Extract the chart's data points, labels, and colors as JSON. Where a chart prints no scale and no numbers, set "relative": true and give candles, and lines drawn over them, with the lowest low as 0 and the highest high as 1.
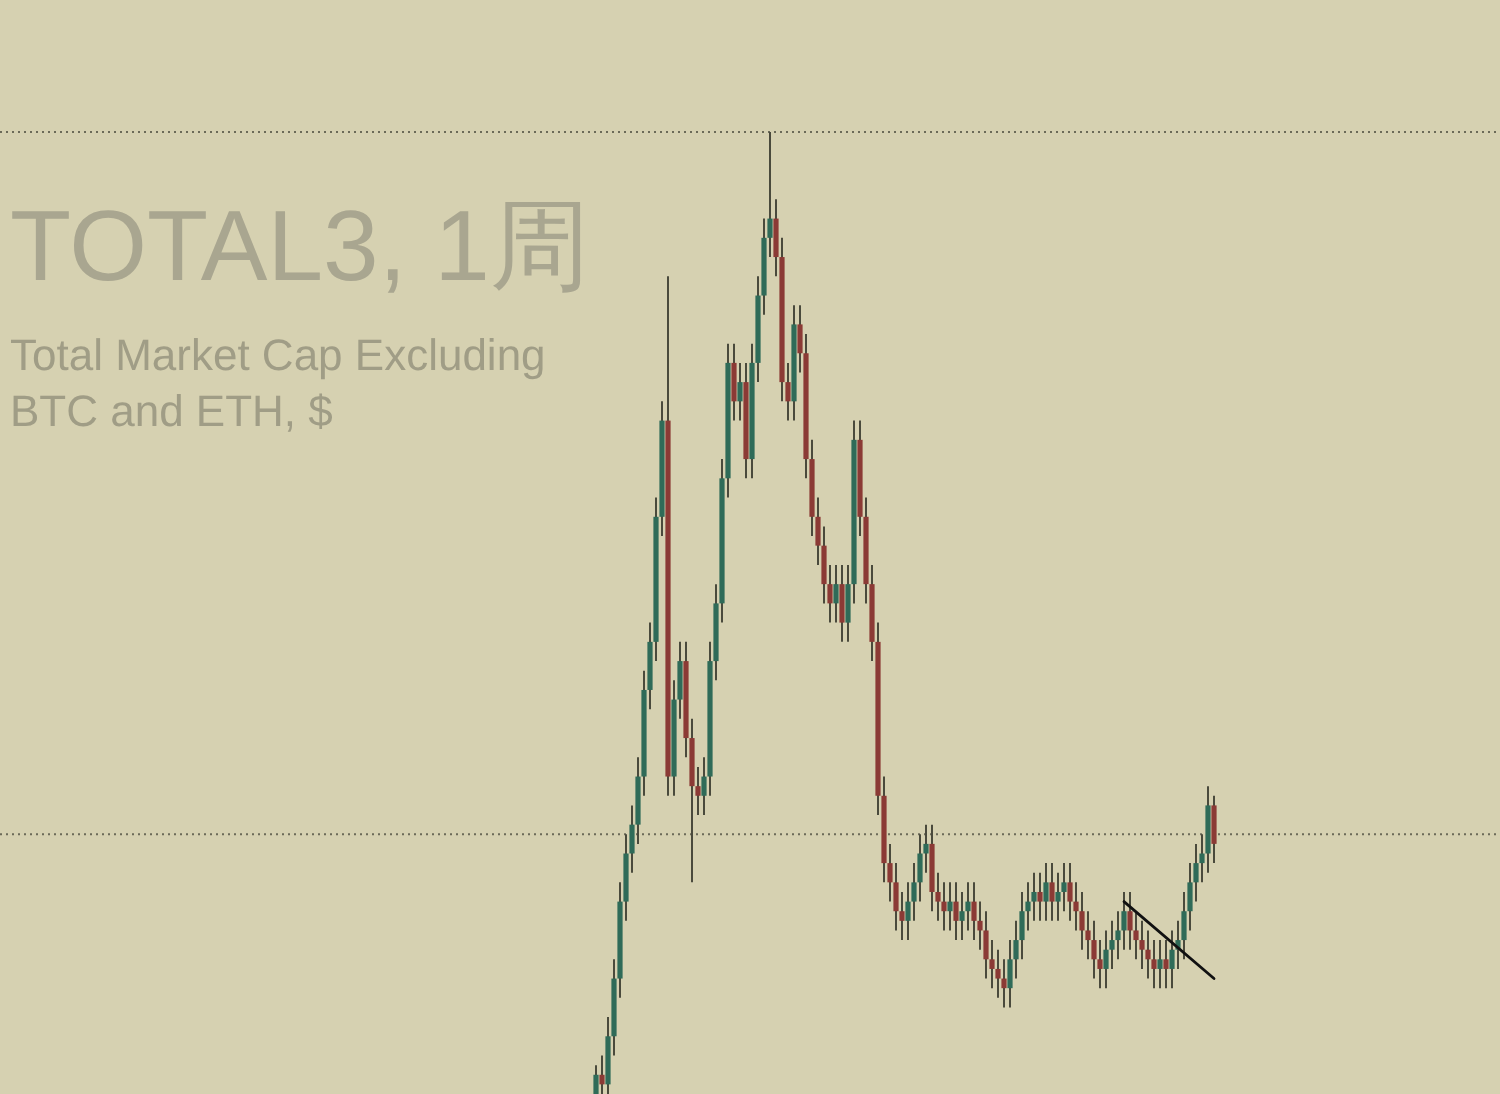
{
  "chart_data": {
    "type": "candlestick",
    "title": "TOTAL3, 1周",
    "subtitle": "Total Market Cap Excluding BTC and ETH, $",
    "relative": true,
    "colors": [
      "#2f6b58",
      "#8b3a35",
      "#2f6b58",
      "#2f6b58",
      "#2f6b58",
      "#2f6b58",
      "#2f6b58",
      "#2f6b58",
      "#2f6b58",
      "#2f6b58",
      "#2f6b58",
      "#2f6b58",
      "#8b3a35",
      "#2f6b58",
      "#2f6b58",
      "#8b3a35",
      "#8b3a35",
      "#8b3a35",
      "#2f6b58",
      "#2f6b58",
      "#2f6b58",
      "#2f6b58",
      "#2f6b58",
      "#8b3a35",
      "#2f6b58",
      "#8b3a35",
      "#2f6b58",
      "#2f6b58",
      "#2f6b58",
      "#2f6b58",
      "#8b3a35",
      "#8b3a35",
      "#8b3a35",
      "#2f6b58",
      "#8b3a35",
      "#8b3a35",
      "#8b3a35",
      "#8b3a35",
      "#8b3a35",
      "#8b3a35",
      "#2f6b58",
      "#8b3a35",
      "#2f6b58",
      "#2f6b58",
      "#8b3a35",
      "#8b3a35",
      "#8b3a35",
      "#8b3a35",
      "#8b3a35",
      "#8b3a35",
      "#8b3a35",
      "#8b3a35",
      "#2f6b58",
      "#2f6b58",
      "#2f6b58",
      "#2f6b58",
      "#8b3a35",
      "#8b3a35",
      "#8b3a35",
      "#2f6b58",
      "#8b3a35",
      "#2f6b58",
      "#2f6b58",
      "#8b3a35",
      "#8b3a35",
      "#8b3a35",
      "#8b3a35",
      "#8b3a35",
      "#8b3a35",
      "#2f6b58",
      "#2f6b58",
      "#2f6b58",
      "#2f6b58",
      "#2f6b58",
      "#8b3a35",
      "#2f6b58",
      "#8b3a35",
      "#2f6b58",
      "#2f6b58",
      "#8b3a35",
      "#8b3a35",
      "#8b3a35",
      "#8b3a35",
      "#8b3a35",
      "#8b3a35",
      "#2f6b58",
      "#2f6b58",
      "#2f6b58",
      "#2f6b58",
      "#8b3a35",
      "#8b3a35",
      "#8b3a35",
      "#8b3a35",
      "#8b3a35",
      "#2f6b58",
      "#8b3a35",
      "#2f6b58",
      "#2f6b58",
      "#2f6b58",
      "#2f6b58",
      "#2f6b58",
      "#2f6b58",
      "#2f6b58",
      "#8b3a35"
    ],
    "categories": [
      null,
      null,
      null,
      null,
      null,
      null,
      null,
      null,
      null,
      null,
      null,
      null,
      null,
      null,
      null,
      null,
      null,
      null,
      null,
      null,
      null,
      null,
      null,
      null,
      null,
      null,
      null,
      null,
      null,
      null,
      null,
      null,
      null,
      null,
      null,
      null,
      null,
      null,
      null,
      null,
      null,
      null,
      null,
      null,
      null,
      null,
      null,
      null,
      null,
      null,
      null,
      null,
      null,
      null,
      null,
      null,
      null,
      null,
      null,
      null,
      null,
      null,
      null,
      null,
      null,
      null,
      null,
      null,
      null,
      null,
      null,
      null,
      null,
      null,
      null,
      null,
      null,
      null,
      null,
      null,
      null,
      null,
      null,
      null,
      null,
      null,
      null,
      null,
      null,
      null,
      null,
      null,
      null,
      null,
      null,
      null,
      null,
      null,
      null,
      null,
      null,
      null,
      null,
      null
    ],
    "ohlc": [
      [
        0.0,
        0.03,
        0.0,
        0.02
      ],
      [
        0.02,
        0.04,
        0.0,
        0.01
      ],
      [
        0.01,
        0.08,
        0.0,
        0.06
      ],
      [
        0.06,
        0.14,
        0.04,
        0.12
      ],
      [
        0.12,
        0.22,
        0.1,
        0.2
      ],
      [
        0.2,
        0.27,
        0.18,
        0.25
      ],
      [
        0.25,
        0.3,
        0.23,
        0.28
      ],
      [
        0.28,
        0.35,
        0.26,
        0.33
      ],
      [
        0.33,
        0.44,
        0.31,
        0.42
      ],
      [
        0.42,
        0.49,
        0.4,
        0.47
      ],
      [
        0.47,
        0.62,
        0.45,
        0.6
      ],
      [
        0.6,
        0.72,
        0.58,
        0.7
      ],
      [
        0.7,
        0.85,
        0.31,
        0.33
      ],
      [
        0.33,
        0.43,
        0.31,
        0.41
      ],
      [
        0.41,
        0.47,
        0.39,
        0.45
      ],
      [
        0.45,
        0.47,
        0.35,
        0.37
      ],
      [
        0.37,
        0.39,
        0.22,
        0.32
      ],
      [
        0.32,
        0.34,
        0.29,
        0.31
      ],
      [
        0.31,
        0.35,
        0.29,
        0.33
      ],
      [
        0.33,
        0.47,
        0.31,
        0.45
      ],
      [
        0.45,
        0.53,
        0.43,
        0.51
      ],
      [
        0.51,
        0.66,
        0.49,
        0.64
      ],
      [
        0.64,
        0.78,
        0.62,
        0.76
      ],
      [
        0.76,
        0.78,
        0.7,
        0.72
      ],
      [
        0.72,
        0.76,
        0.7,
        0.74
      ],
      [
        0.74,
        0.76,
        0.64,
        0.66
      ],
      [
        0.66,
        0.78,
        0.64,
        0.76
      ],
      [
        0.76,
        0.85,
        0.74,
        0.83
      ],
      [
        0.83,
        0.91,
        0.81,
        0.89
      ],
      [
        0.89,
        1.0,
        0.87,
        0.91
      ],
      [
        0.91,
        0.93,
        0.85,
        0.87
      ],
      [
        0.87,
        0.89,
        0.72,
        0.74
      ],
      [
        0.74,
        0.76,
        0.7,
        0.72
      ],
      [
        0.72,
        0.82,
        0.7,
        0.8
      ],
      [
        0.8,
        0.82,
        0.75,
        0.77
      ],
      [
        0.77,
        0.79,
        0.64,
        0.66
      ],
      [
        0.66,
        0.68,
        0.58,
        0.6
      ],
      [
        0.6,
        0.62,
        0.55,
        0.57
      ],
      [
        0.57,
        0.59,
        0.51,
        0.53
      ],
      [
        0.53,
        0.55,
        0.49,
        0.51
      ],
      [
        0.51,
        0.55,
        0.49,
        0.53
      ],
      [
        0.53,
        0.55,
        0.47,
        0.49
      ],
      [
        0.49,
        0.55,
        0.47,
        0.53
      ],
      [
        0.53,
        0.7,
        0.51,
        0.68
      ],
      [
        0.68,
        0.7,
        0.58,
        0.6
      ],
      [
        0.6,
        0.62,
        0.51,
        0.53
      ],
      [
        0.53,
        0.55,
        0.45,
        0.47
      ],
      [
        0.47,
        0.49,
        0.29,
        0.31
      ],
      [
        0.31,
        0.33,
        0.22,
        0.24
      ],
      [
        0.24,
        0.26,
        0.2,
        0.22
      ],
      [
        0.22,
        0.24,
        0.17,
        0.19
      ],
      [
        0.19,
        0.21,
        0.16,
        0.18
      ],
      [
        0.18,
        0.22,
        0.16,
        0.2
      ],
      [
        0.2,
        0.24,
        0.18,
        0.22
      ],
      [
        0.22,
        0.27,
        0.2,
        0.25
      ],
      [
        0.25,
        0.28,
        0.23,
        0.26
      ],
      [
        0.26,
        0.28,
        0.19,
        0.21
      ],
      [
        0.21,
        0.23,
        0.18,
        0.2
      ],
      [
        0.2,
        0.22,
        0.17,
        0.19
      ],
      [
        0.19,
        0.22,
        0.17,
        0.2
      ],
      [
        0.2,
        0.22,
        0.16,
        0.18
      ],
      [
        0.18,
        0.21,
        0.16,
        0.19
      ],
      [
        0.19,
        0.22,
        0.17,
        0.2
      ],
      [
        0.2,
        0.22,
        0.16,
        0.18
      ],
      [
        0.18,
        0.2,
        0.15,
        0.17
      ],
      [
        0.17,
        0.19,
        0.12,
        0.14
      ],
      [
        0.14,
        0.16,
        0.11,
        0.13
      ],
      [
        0.13,
        0.15,
        0.1,
        0.12
      ],
      [
        0.12,
        0.14,
        0.09,
        0.11
      ],
      [
        0.11,
        0.16,
        0.09,
        0.14
      ],
      [
        0.14,
        0.18,
        0.12,
        0.16
      ],
      [
        0.16,
        0.21,
        0.14,
        0.19
      ],
      [
        0.19,
        0.22,
        0.17,
        0.2
      ],
      [
        0.2,
        0.23,
        0.18,
        0.21
      ],
      [
        0.21,
        0.23,
        0.18,
        0.2
      ],
      [
        0.2,
        0.24,
        0.18,
        0.22
      ],
      [
        0.22,
        0.24,
        0.18,
        0.2
      ],
      [
        0.2,
        0.23,
        0.18,
        0.21
      ],
      [
        0.21,
        0.24,
        0.19,
        0.22
      ],
      [
        0.22,
        0.24,
        0.18,
        0.2
      ],
      [
        0.2,
        0.22,
        0.17,
        0.19
      ],
      [
        0.19,
        0.21,
        0.15,
        0.17
      ],
      [
        0.17,
        0.19,
        0.14,
        0.16
      ],
      [
        0.16,
        0.18,
        0.12,
        0.14
      ],
      [
        0.14,
        0.16,
        0.11,
        0.13
      ],
      [
        0.13,
        0.17,
        0.11,
        0.15
      ],
      [
        0.15,
        0.18,
        0.13,
        0.16
      ],
      [
        0.16,
        0.19,
        0.14,
        0.17
      ],
      [
        0.17,
        0.21,
        0.15,
        0.19
      ],
      [
        0.19,
        0.21,
        0.15,
        0.17
      ],
      [
        0.17,
        0.19,
        0.14,
        0.16
      ],
      [
        0.16,
        0.18,
        0.13,
        0.15
      ],
      [
        0.15,
        0.17,
        0.12,
        0.14
      ],
      [
        0.14,
        0.16,
        0.11,
        0.13
      ],
      [
        0.13,
        0.16,
        0.11,
        0.14
      ],
      [
        0.14,
        0.16,
        0.11,
        0.13
      ],
      [
        0.13,
        0.17,
        0.11,
        0.15
      ],
      [
        0.15,
        0.18,
        0.13,
        0.16
      ],
      [
        0.16,
        0.21,
        0.14,
        0.19
      ],
      [
        0.19,
        0.24,
        0.17,
        0.22
      ],
      [
        0.22,
        0.26,
        0.2,
        0.24
      ],
      [
        0.24,
        0.27,
        0.22,
        0.25
      ],
      [
        0.25,
        0.32,
        0.23,
        0.3
      ],
      [
        0.3,
        0.31,
        0.24,
        0.26
      ]
    ],
    "series": [
      {
        "type": "line",
        "color": "#111111",
        "values": [
          null,
          null,
          null,
          null,
          null,
          null,
          null,
          null,
          null,
          null,
          null,
          null,
          null,
          null,
          null,
          null,
          null,
          null,
          null,
          null,
          null,
          null,
          null,
          null,
          null,
          null,
          null,
          null,
          null,
          null,
          null,
          null,
          null,
          null,
          null,
          null,
          null,
          null,
          null,
          null,
          null,
          null,
          null,
          null,
          null,
          null,
          null,
          null,
          null,
          null,
          null,
          null,
          null,
          null,
          null,
          null,
          null,
          null,
          null,
          null,
          null,
          null,
          null,
          null,
          null,
          null,
          null,
          null,
          null,
          null,
          null,
          null,
          null,
          null,
          null,
          null,
          null,
          null,
          null,
          null,
          null,
          null,
          null,
          null,
          null,
          null,
          null,
          null,
          0.2,
          null,
          null,
          null,
          null,
          null,
          null,
          null,
          null,
          null,
          null,
          null,
          null,
          null,
          null,
          0.12
        ]
      }
    ],
    "ref_lines": [
      {
        "axis": "y",
        "value": 1.0,
        "color": "#6b6a58",
        "line_style": "dotted"
      },
      {
        "axis": "y",
        "value": 0.27,
        "color": "#6b6a58",
        "line_style": "dotted"
      }
    ]
  }
}
